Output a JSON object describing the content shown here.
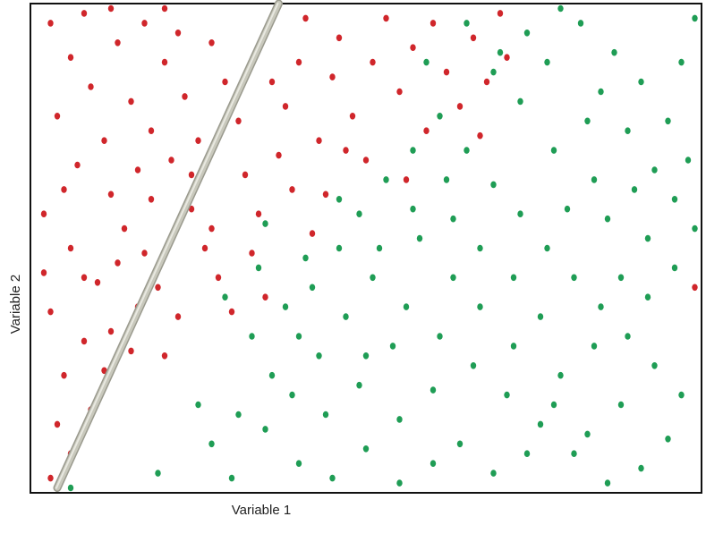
{
  "chart_data": {
    "type": "scatter",
    "title": "",
    "xlabel": "Variable 1",
    "ylabel": "Variable 2",
    "grid": false,
    "legend": "none",
    "xlim": [
      0,
      100
    ],
    "ylim": [
      0,
      100
    ],
    "series": [
      {
        "color": "#d0262b",
        "points": [
          [
            3,
            3
          ],
          [
            6,
            8
          ],
          [
            4,
            14
          ],
          [
            9,
            17
          ],
          [
            5,
            24
          ],
          [
            8,
            31
          ],
          [
            3,
            37
          ],
          [
            12,
            33
          ],
          [
            15,
            29
          ],
          [
            10,
            43
          ],
          [
            6,
            50
          ],
          [
            2,
            57
          ],
          [
            12,
            61
          ],
          [
            7,
            67
          ],
          [
            14,
            54
          ],
          [
            17,
            49
          ],
          [
            19,
            42
          ],
          [
            22,
            36
          ],
          [
            18,
            60
          ],
          [
            11,
            72
          ],
          [
            4,
            77
          ],
          [
            9,
            83
          ],
          [
            6,
            89
          ],
          [
            15,
            80
          ],
          [
            13,
            92
          ],
          [
            18,
            74
          ],
          [
            21,
            68
          ],
          [
            24,
            58
          ],
          [
            26,
            50
          ],
          [
            28,
            44
          ],
          [
            30,
            37
          ],
          [
            25,
            72
          ],
          [
            23,
            81
          ],
          [
            20,
            88
          ],
          [
            17,
            96
          ],
          [
            27,
            92
          ],
          [
            29,
            84
          ],
          [
            31,
            76
          ],
          [
            32,
            65
          ],
          [
            34,
            57
          ],
          [
            33,
            49
          ],
          [
            35,
            40
          ],
          [
            3,
            96
          ],
          [
            8,
            98
          ],
          [
            12,
            99
          ],
          [
            20,
            99
          ],
          [
            22,
            94
          ],
          [
            37,
            69
          ],
          [
            38,
            79
          ],
          [
            40,
            88
          ],
          [
            41,
            97
          ],
          [
            43,
            72
          ],
          [
            44,
            61
          ],
          [
            42,
            53
          ],
          [
            45,
            85
          ],
          [
            46,
            93
          ],
          [
            48,
            77
          ],
          [
            50,
            68
          ],
          [
            51,
            88
          ],
          [
            53,
            97
          ],
          [
            55,
            82
          ],
          [
            57,
            91
          ],
          [
            59,
            74
          ],
          [
            60,
            96
          ],
          [
            62,
            86
          ],
          [
            64,
            79
          ],
          [
            66,
            93
          ],
          [
            68,
            84
          ],
          [
            70,
            98
          ],
          [
            71,
            89
          ],
          [
            67,
            73
          ],
          [
            56,
            64
          ],
          [
            47,
            70
          ],
          [
            39,
            62
          ],
          [
            36,
            84
          ],
          [
            2,
            45
          ],
          [
            5,
            62
          ],
          [
            13,
            47
          ],
          [
            16,
            66
          ],
          [
            24,
            65
          ],
          [
            27,
            54
          ],
          [
            20,
            28
          ],
          [
            16,
            38
          ],
          [
            11,
            25
          ],
          [
            8,
            44
          ],
          [
            99,
            42
          ]
        ]
      },
      {
        "color": "#1f9d55",
        "points": [
          [
            6,
            1
          ],
          [
            19,
            4
          ],
          [
            27,
            10
          ],
          [
            31,
            16
          ],
          [
            36,
            24
          ],
          [
            40,
            32
          ],
          [
            42,
            42
          ],
          [
            46,
            50
          ],
          [
            49,
            57
          ],
          [
            53,
            64
          ],
          [
            57,
            70
          ],
          [
            61,
            77
          ],
          [
            65,
            70
          ],
          [
            69,
            63
          ],
          [
            73,
            57
          ],
          [
            77,
            50
          ],
          [
            81,
            44
          ],
          [
            85,
            38
          ],
          [
            89,
            32
          ],
          [
            93,
            26
          ],
          [
            97,
            20
          ],
          [
            95,
            11
          ],
          [
            91,
            5
          ],
          [
            86,
            2
          ],
          [
            81,
            8
          ],
          [
            76,
            14
          ],
          [
            71,
            20
          ],
          [
            66,
            26
          ],
          [
            61,
            32
          ],
          [
            56,
            38
          ],
          [
            51,
            44
          ],
          [
            47,
            36
          ],
          [
            43,
            28
          ],
          [
            39,
            20
          ],
          [
            35,
            13
          ],
          [
            40,
            6
          ],
          [
            45,
            3
          ],
          [
            50,
            9
          ],
          [
            55,
            15
          ],
          [
            60,
            21
          ],
          [
            64,
            10
          ],
          [
            69,
            4
          ],
          [
            74,
            8
          ],
          [
            79,
            24
          ],
          [
            84,
            30
          ],
          [
            88,
            44
          ],
          [
            92,
            52
          ],
          [
            96,
            60
          ],
          [
            98,
            68
          ],
          [
            95,
            76
          ],
          [
            91,
            84
          ],
          [
            87,
            90
          ],
          [
            82,
            96
          ],
          [
            77,
            88
          ],
          [
            73,
            80
          ],
          [
            69,
            86
          ],
          [
            74,
            94
          ],
          [
            79,
            99
          ],
          [
            85,
            82
          ],
          [
            89,
            74
          ],
          [
            93,
            66
          ],
          [
            97,
            88
          ],
          [
            99,
            97
          ],
          [
            63,
            44
          ],
          [
            58,
            52
          ],
          [
            54,
            30
          ],
          [
            49,
            22
          ],
          [
            44,
            16
          ],
          [
            38,
            38
          ],
          [
            34,
            46
          ],
          [
            67,
            38
          ],
          [
            72,
            44
          ],
          [
            76,
            36
          ],
          [
            80,
            58
          ],
          [
            84,
            64
          ],
          [
            63,
            56
          ],
          [
            59,
            88
          ],
          [
            65,
            96
          ],
          [
            70,
            90
          ],
          [
            60,
            6
          ],
          [
            55,
            2
          ],
          [
            50,
            28
          ],
          [
            46,
            60
          ],
          [
            52,
            50
          ],
          [
            57,
            58
          ],
          [
            62,
            64
          ],
          [
            67,
            50
          ],
          [
            72,
            30
          ],
          [
            78,
            18
          ],
          [
            83,
            12
          ],
          [
            88,
            18
          ],
          [
            92,
            40
          ],
          [
            96,
            46
          ],
          [
            99,
            54
          ],
          [
            30,
            3
          ],
          [
            25,
            18
          ],
          [
            33,
            32
          ],
          [
            41,
            48
          ],
          [
            29,
            40
          ],
          [
            35,
            55
          ],
          [
            78,
            70
          ],
          [
            83,
            76
          ],
          [
            86,
            56
          ],
          [
            90,
            62
          ]
        ]
      }
    ],
    "annotations": [
      {
        "type": "separating-line",
        "from": [
          4,
          1
        ],
        "to": [
          37,
          100
        ],
        "color": "#c8c8bc"
      }
    ]
  }
}
